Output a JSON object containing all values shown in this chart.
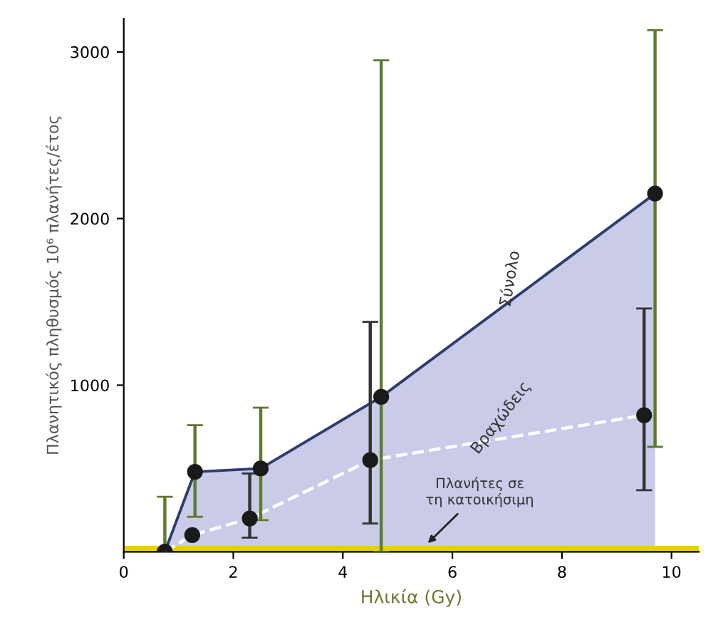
{
  "chart_data": {
    "type": "area",
    "xlabel": "Ηλικία (Gy)",
    "ylabel": "Πλανητικός πληθυσμός 10⁶ πλανήτες/έτος",
    "xlim": [
      0,
      10.5
    ],
    "ylim": [
      0,
      3200
    ],
    "xticks": [
      0,
      2,
      4,
      6,
      8,
      10
    ],
    "yticks": [
      1000,
      2000,
      3000
    ],
    "grid": false,
    "legend": false,
    "marker": "circle",
    "series": [
      {
        "name": "Σύνολο",
        "color": "#2e3d6e",
        "x": [
          0.75,
          1.3,
          2.5,
          4.7,
          9.7
        ],
        "values": [
          0,
          480,
          500,
          930,
          2150
        ],
        "errors": [
          [
            0,
            330
          ],
          [
            210,
            760
          ],
          [
            190,
            865
          ],
          [
            0,
            2950
          ],
          [
            630,
            3130
          ]
        ]
      },
      {
        "name": "Βραχώδεις",
        "type": "line",
        "line_style": "dashed",
        "color": "#ffffff",
        "x": [
          0.75,
          1.25,
          2.3,
          4.5,
          9.5
        ],
        "values": [
          0,
          100,
          200,
          550,
          820
        ],
        "errors": [
          null,
          null,
          [
            85,
            470
          ],
          [
            170,
            1380
          ],
          [
            370,
            1460
          ]
        ]
      }
    ],
    "bands": [
      {
        "axis": "y",
        "from": 0,
        "to": 35,
        "color": "#e8d000",
        "label": "Πλανήτες σε\nτη κατοικήσιμη"
      }
    ]
  }
}
